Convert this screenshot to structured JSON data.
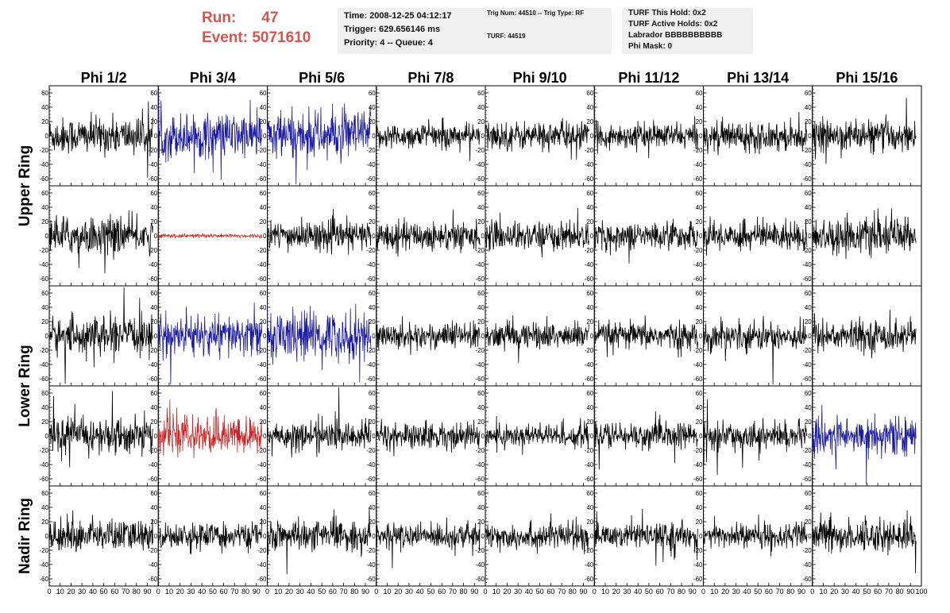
{
  "run_info": {
    "run_label": "Run:",
    "run_value": "47",
    "event_label": "Event:",
    "event_value": "5071610"
  },
  "info_boxes": {
    "time": [
      "Time: 2008-12-25 04:12:17",
      "Trigger: 629.656146 ms",
      "Priority: 4 -- Queue: 4"
    ],
    "trig": [
      "Trig Num: 44510 -- Trig Type: RF",
      "TURF: 44519"
    ],
    "turf": [
      "TURF This Hold: 0x2",
      "TURF Active Holds: 0x2",
      "Labrador BBBBBBBBBB",
      "Phi Mask: 0"
    ]
  },
  "colors": {
    "default_trace": "#000000",
    "blue_trace": "#1a1aa0",
    "red_trace": "#cc2222",
    "header_text": "#d9534f"
  },
  "chart_data": {
    "type": "line",
    "columns": [
      "Phi 1/2",
      "Phi 3/4",
      "Phi 5/6",
      "Phi 7/8",
      "Phi 9/10",
      "Phi 11/12",
      "Phi 13/14",
      "Phi 15/16"
    ],
    "ring_labels": [
      {
        "label": "Upper Ring",
        "rows": [
          0,
          1
        ]
      },
      {
        "label": "Lower Ring",
        "rows": [
          2,
          3
        ]
      },
      {
        "label": "Nadir Ring",
        "rows": [
          4
        ]
      }
    ],
    "rows": 5,
    "xlim": [
      0,
      100
    ],
    "ylim": [
      -70,
      70
    ],
    "yticks": [
      -60,
      -40,
      -20,
      0,
      20,
      40,
      60
    ],
    "xticks": [
      0,
      10,
      20,
      30,
      40,
      50,
      60,
      70,
      80,
      90,
      100
    ],
    "samples_per_trace": 260,
    "trace_x_range": [
      0,
      95
    ],
    "traces": [
      [
        {
          "color": "black",
          "amp": 18
        },
        {
          "color": "blue",
          "amp": 22
        },
        {
          "color": "blue",
          "amp": 24
        },
        {
          "color": "black",
          "amp": 12
        },
        {
          "color": "black",
          "amp": 14
        },
        {
          "color": "black",
          "amp": 12
        },
        {
          "color": "black",
          "amp": 14
        },
        {
          "color": "black",
          "amp": 15
        }
      ],
      [
        {
          "color": "black",
          "amp": 18
        },
        {
          "color": "red",
          "amp": 2
        },
        {
          "color": "black",
          "amp": 14
        },
        {
          "color": "black",
          "amp": 14
        },
        {
          "color": "black",
          "amp": 14
        },
        {
          "color": "black",
          "amp": 13
        },
        {
          "color": "black",
          "amp": 14
        },
        {
          "color": "black",
          "amp": 17
        }
      ],
      [
        {
          "color": "black",
          "amp": 18
        },
        {
          "color": "blue",
          "amp": 20
        },
        {
          "color": "blue",
          "amp": 24
        },
        {
          "color": "black",
          "amp": 13
        },
        {
          "color": "black",
          "amp": 13
        },
        {
          "color": "black",
          "amp": 13
        },
        {
          "color": "black",
          "amp": 14
        },
        {
          "color": "black",
          "amp": 15
        }
      ],
      [
        {
          "color": "black",
          "amp": 18
        },
        {
          "color": "red",
          "amp": 18
        },
        {
          "color": "black",
          "amp": 14
        },
        {
          "color": "black",
          "amp": 13
        },
        {
          "color": "black",
          "amp": 12
        },
        {
          "color": "black",
          "amp": 13
        },
        {
          "color": "black",
          "amp": 13
        },
        {
          "color": "blue",
          "amp": 18
        }
      ],
      [
        {
          "color": "black",
          "amp": 16
        },
        {
          "color": "black",
          "amp": 12
        },
        {
          "color": "black",
          "amp": 14
        },
        {
          "color": "black",
          "amp": 12
        },
        {
          "color": "black",
          "amp": 13
        },
        {
          "color": "black",
          "amp": 12
        },
        {
          "color": "black",
          "amp": 12
        },
        {
          "color": "black",
          "amp": 16
        }
      ]
    ]
  }
}
